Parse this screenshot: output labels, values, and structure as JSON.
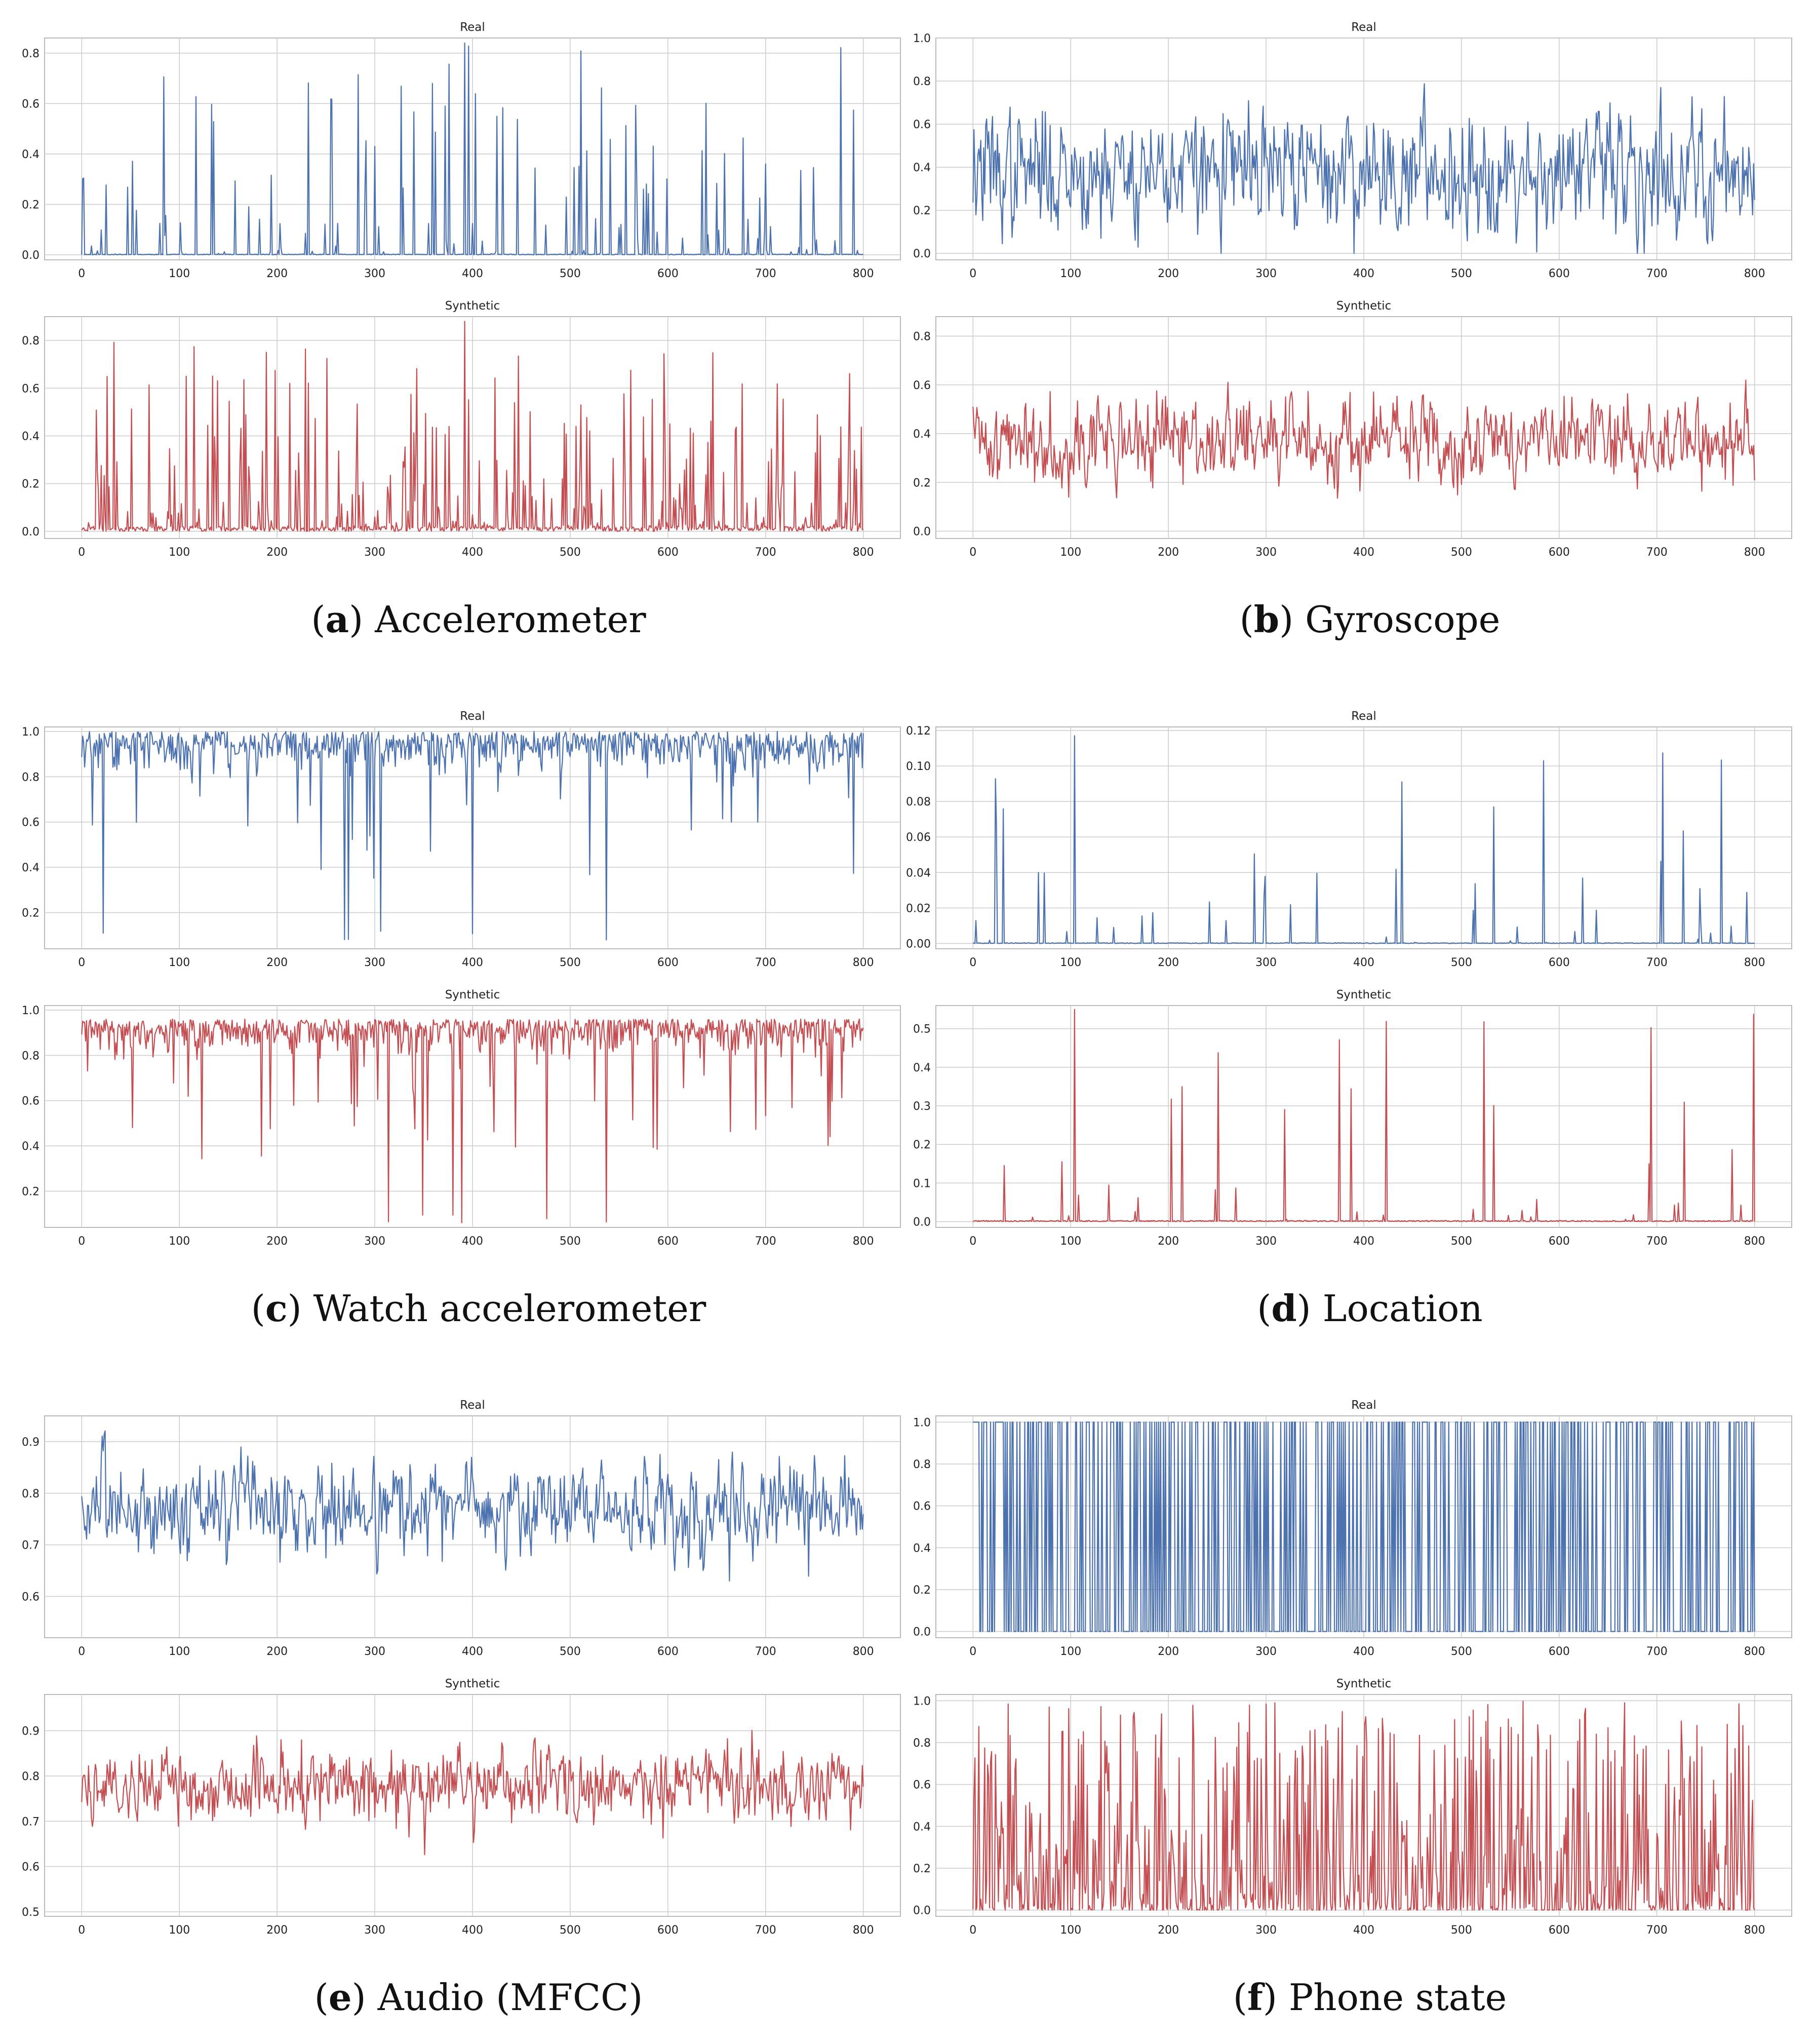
{
  "figure": {
    "captions": [
      {
        "letter": "a",
        "text": "Accelerometer"
      },
      {
        "letter": "b",
        "text": "Gyroscope"
      },
      {
        "letter": "c",
        "text": "Watch accelerometer"
      },
      {
        "letter": "d",
        "text": "Location"
      },
      {
        "letter": "e",
        "text": "Audio (MFCC)"
      },
      {
        "letter": "f",
        "text": "Phone state"
      }
    ]
  },
  "colors": {
    "real": "#4c72b0",
    "synthetic": "#c44e52",
    "grid": "#cccccc",
    "axis": "#bbbbbb"
  },
  "chart_data": [
    {
      "id": "a-real",
      "type": "line",
      "title": "Real",
      "series_color": "real",
      "ylim": [
        -0.02,
        0.86
      ],
      "yticks": [
        "0.0",
        "0.2",
        "0.4",
        "0.6",
        "0.8"
      ],
      "ytick_values": [
        0,
        0.2,
        0.4,
        0.6,
        0.8
      ],
      "xlim": [
        -38,
        838
      ],
      "xticks": [
        "0",
        "100",
        "200",
        "300",
        "400",
        "500",
        "600",
        "700",
        "800"
      ],
      "x_range": [
        0,
        800
      ],
      "profile": "spiky",
      "base": 0.003,
      "peak_max": 0.84,
      "density": 0.16,
      "seed": 11
    },
    {
      "id": "a-syn",
      "type": "line",
      "title": "Synthetic",
      "series_color": "synthetic",
      "ylim": [
        -0.03,
        0.9
      ],
      "yticks": [
        "0.0",
        "0.2",
        "0.4",
        "0.6",
        "0.8"
      ],
      "ytick_values": [
        0,
        0.2,
        0.4,
        0.6,
        0.8
      ],
      "xlim": [
        -38,
        838
      ],
      "xticks": [
        "0",
        "100",
        "200",
        "300",
        "400",
        "500",
        "600",
        "700",
        "800"
      ],
      "x_range": [
        0,
        800
      ],
      "profile": "spiky",
      "base": 0.02,
      "peak_max": 0.88,
      "density": 0.3,
      "seed": 23
    },
    {
      "id": "b-real",
      "type": "line",
      "title": "Real",
      "series_color": "real",
      "ylim": [
        -0.03,
        1.0
      ],
      "yticks": [
        "0.0",
        "0.2",
        "0.4",
        "0.6",
        "0.8",
        "1.0"
      ],
      "ytick_values": [
        0,
        0.2,
        0.4,
        0.6,
        0.8,
        1.0
      ],
      "xlim": [
        -38,
        838
      ],
      "xticks": [
        "0",
        "100",
        "200",
        "300",
        "400",
        "500",
        "600",
        "700",
        "800"
      ],
      "x_range": [
        0,
        800
      ],
      "profile": "noise",
      "mean": 0.38,
      "spread": 0.2,
      "vmin": 0.0,
      "vmax": 0.95,
      "seed": 37
    },
    {
      "id": "b-syn",
      "type": "line",
      "title": "Synthetic",
      "series_color": "synthetic",
      "ylim": [
        -0.03,
        0.88
      ],
      "yticks": [
        "0.0",
        "0.2",
        "0.4",
        "0.6",
        "0.8"
      ],
      "ytick_values": [
        0,
        0.2,
        0.4,
        0.6,
        0.8
      ],
      "xlim": [
        -38,
        838
      ],
      "xticks": [
        "0",
        "100",
        "200",
        "300",
        "400",
        "500",
        "600",
        "700",
        "800"
      ],
      "x_range": [
        0,
        800
      ],
      "profile": "noise",
      "mean": 0.37,
      "spread": 0.13,
      "vmin": 0.0,
      "vmax": 0.86,
      "seed": 41
    },
    {
      "id": "c-real",
      "type": "line",
      "title": "Real",
      "series_color": "real",
      "ylim": [
        0.04,
        1.02
      ],
      "yticks": [
        "0.2",
        "0.4",
        "0.6",
        "0.8",
        "1.0"
      ],
      "ytick_values": [
        0.2,
        0.4,
        0.6,
        0.8,
        1.0
      ],
      "xlim": [
        -38,
        838
      ],
      "xticks": [
        "0",
        "100",
        "200",
        "300",
        "400",
        "500",
        "600",
        "700",
        "800"
      ],
      "x_range": [
        0,
        800
      ],
      "profile": "dips",
      "top": 1.0,
      "spread": 0.08,
      "vmin": 0.07,
      "dip_density": 0.06,
      "seed": 53
    },
    {
      "id": "c-syn",
      "type": "line",
      "title": "Synthetic",
      "series_color": "synthetic",
      "ylim": [
        0.04,
        1.02
      ],
      "yticks": [
        "0.2",
        "0.4",
        "0.6",
        "0.8",
        "1.0"
      ],
      "ytick_values": [
        0.2,
        0.4,
        0.6,
        0.8,
        1.0
      ],
      "xlim": [
        -38,
        838
      ],
      "xticks": [
        "0",
        "100",
        "200",
        "300",
        "400",
        "500",
        "600",
        "700",
        "800"
      ],
      "x_range": [
        0,
        800
      ],
      "profile": "dips",
      "top": 0.96,
      "spread": 0.06,
      "vmin": 0.06,
      "dip_density": 0.08,
      "seed": 59
    },
    {
      "id": "d-real",
      "type": "line",
      "title": "Real",
      "series_color": "real",
      "ylim": [
        -0.003,
        0.122
      ],
      "yticks": [
        "0.00",
        "0.02",
        "0.04",
        "0.06",
        "0.08",
        "0.10",
        "0.12"
      ],
      "ytick_values": [
        0,
        0.02,
        0.04,
        0.06,
        0.08,
        0.1,
        0.12
      ],
      "xlim": [
        -38,
        838
      ],
      "xticks": [
        "0",
        "100",
        "200",
        "300",
        "400",
        "500",
        "600",
        "700",
        "800"
      ],
      "x_range": [
        0,
        800
      ],
      "profile": "sparse",
      "base": 0.0004,
      "peak_max": 0.117,
      "density": 0.04,
      "seed": 67
    },
    {
      "id": "d-syn",
      "type": "line",
      "title": "Synthetic",
      "series_color": "synthetic",
      "ylim": [
        -0.015,
        0.56
      ],
      "yticks": [
        "0.0",
        "0.1",
        "0.2",
        "0.3",
        "0.4",
        "0.5"
      ],
      "ytick_values": [
        0,
        0.1,
        0.2,
        0.3,
        0.4,
        0.5
      ],
      "xlim": [
        -38,
        838
      ],
      "xticks": [
        "0",
        "100",
        "200",
        "300",
        "400",
        "500",
        "600",
        "700",
        "800"
      ],
      "x_range": [
        0,
        800
      ],
      "profile": "sparse",
      "base": 0.003,
      "peak_max": 0.55,
      "density": 0.03,
      "seed": 71
    },
    {
      "id": "e-real",
      "type": "line",
      "title": "Real",
      "series_color": "real",
      "ylim": [
        0.52,
        0.95
      ],
      "yticks": [
        "0.6",
        "0.7",
        "0.8",
        "0.9"
      ],
      "ytick_values": [
        0.6,
        0.7,
        0.8,
        0.9
      ],
      "xlim": [
        -38,
        838
      ],
      "xticks": [
        "0",
        "100",
        "200",
        "300",
        "400",
        "500",
        "600",
        "700",
        "800"
      ],
      "x_range": [
        0,
        800
      ],
      "profile": "noise",
      "mean": 0.77,
      "spread": 0.065,
      "vmin": 0.54,
      "vmax": 0.93,
      "seed": 83
    },
    {
      "id": "e-syn",
      "type": "line",
      "title": "Synthetic",
      "series_color": "synthetic",
      "ylim": [
        0.49,
        0.98
      ],
      "yticks": [
        "0.5",
        "0.6",
        "0.7",
        "0.8",
        "0.9"
      ],
      "ytick_values": [
        0.5,
        0.6,
        0.7,
        0.8,
        0.9
      ],
      "xlim": [
        -38,
        838
      ],
      "xticks": [
        "0",
        "100",
        "200",
        "300",
        "400",
        "500",
        "600",
        "700",
        "800"
      ],
      "x_range": [
        0,
        800
      ],
      "profile": "noise",
      "mean": 0.78,
      "spread": 0.06,
      "vmin": 0.5,
      "vmax": 0.97,
      "seed": 89
    },
    {
      "id": "f-real",
      "type": "line",
      "title": "Real",
      "series_color": "real",
      "ylim": [
        -0.03,
        1.03
      ],
      "yticks": [
        "0.0",
        "0.2",
        "0.4",
        "0.6",
        "0.8",
        "1.0"
      ],
      "ytick_values": [
        0,
        0.2,
        0.4,
        0.6,
        0.8,
        1.0
      ],
      "xlim": [
        -38,
        838
      ],
      "xticks": [
        "0",
        "100",
        "200",
        "300",
        "400",
        "500",
        "600",
        "700",
        "800"
      ],
      "x_range": [
        0,
        800
      ],
      "profile": "binary",
      "p_on": 0.4,
      "seed": 97
    },
    {
      "id": "f-syn",
      "type": "line",
      "title": "Synthetic",
      "series_color": "synthetic",
      "ylim": [
        -0.03,
        1.03
      ],
      "yticks": [
        "0.0",
        "0.2",
        "0.4",
        "0.6",
        "0.8",
        "1.0"
      ],
      "ytick_values": [
        0,
        0.2,
        0.4,
        0.6,
        0.8,
        1.0
      ],
      "xlim": [
        -38,
        838
      ],
      "xticks": [
        "0",
        "100",
        "200",
        "300",
        "400",
        "500",
        "600",
        "700",
        "800"
      ],
      "x_range": [
        0,
        800
      ],
      "profile": "softbinary",
      "seed": 101
    }
  ]
}
